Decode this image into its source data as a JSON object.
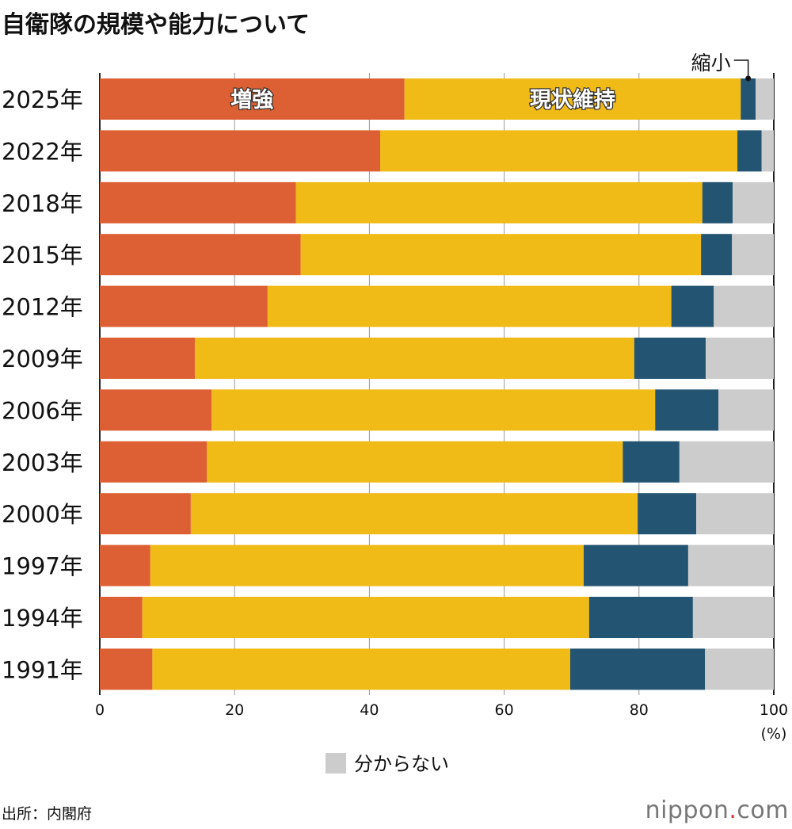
{
  "chart_data": {
    "type": "bar",
    "orientation": "horizontal",
    "stacked": true,
    "title": "自衛隊の規模や能力について",
    "categories": [
      "2025年",
      "2022年",
      "2018年",
      "2015年",
      "2012年",
      "2009年",
      "2006年",
      "2003年",
      "2000年",
      "1997年",
      "1994年",
      "1991年"
    ],
    "series": [
      {
        "name": "増強",
        "color": "#dc6033",
        "values": [
          45.2,
          41.6,
          29.1,
          29.8,
          24.9,
          14.1,
          16.6,
          15.9,
          13.5,
          7.5,
          6.3,
          7.8
        ]
      },
      {
        "name": "現状維持",
        "color": "#f0ba17",
        "values": [
          49.9,
          53.0,
          60.3,
          59.4,
          59.9,
          65.2,
          65.8,
          61.7,
          66.3,
          64.3,
          66.3,
          62.0
        ]
      },
      {
        "name": "縮小",
        "color": "#235572",
        "values": [
          2.2,
          3.6,
          4.5,
          4.6,
          6.3,
          10.6,
          9.4,
          8.4,
          8.7,
          15.5,
          15.4,
          20.0
        ]
      },
      {
        "name": "分からない",
        "color": "#cccccc",
        "values": [
          2.7,
          1.8,
          6.1,
          6.2,
          8.9,
          10.1,
          8.2,
          14.0,
          11.5,
          12.7,
          12.0,
          10.2
        ]
      }
    ],
    "xlim": [
      0,
      100
    ],
    "xticks": [
      "0",
      "20",
      "40",
      "60",
      "80",
      "100"
    ],
    "xunit": "(%)",
    "grid": true,
    "legend": "bottom"
  },
  "source": "出所：内閣府",
  "logo": {
    "name": "nippon",
    "dot": ".",
    "tld": "com"
  }
}
